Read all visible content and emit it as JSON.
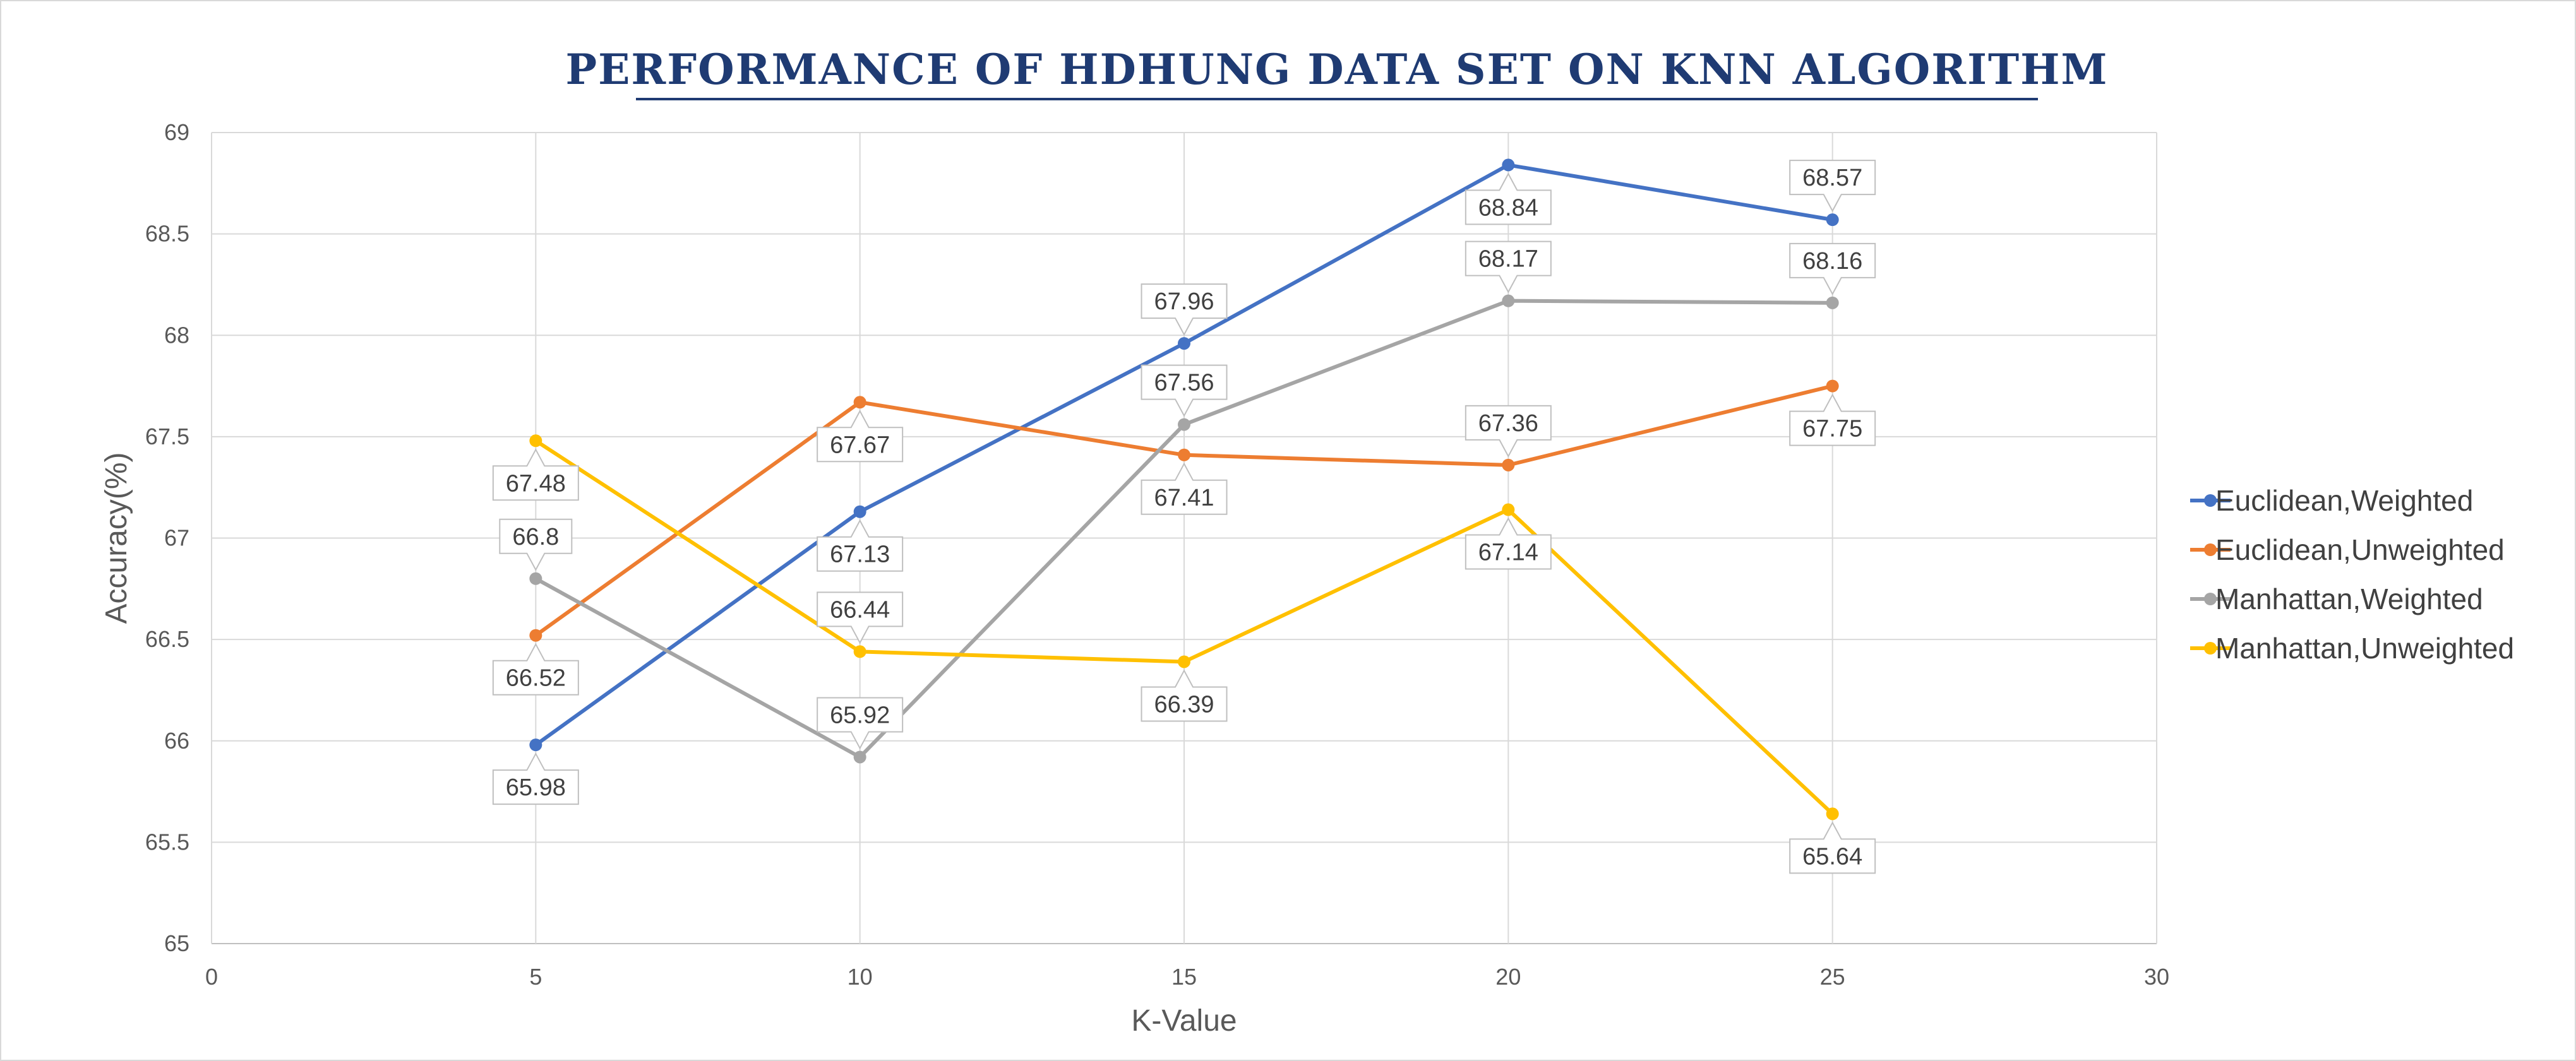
{
  "chart_data": {
    "type": "line",
    "title": "PERFORMANCE OF HDHUNG DATA SET ON KNN ALGORITHM",
    "xlabel": "K-Value",
    "ylabel": "Accuracy(%)",
    "xlim": [
      0,
      30
    ],
    "ylim": [
      65,
      69
    ],
    "x_ticks": [
      0,
      5,
      10,
      15,
      20,
      25,
      30
    ],
    "y_ticks": [
      65,
      65.5,
      66,
      66.5,
      67,
      67.5,
      68,
      68.5,
      69
    ],
    "grid": true,
    "legend_position": "right",
    "x": [
      5,
      10,
      15,
      20,
      25
    ],
    "series": [
      {
        "name": "Euclidean,Weighted",
        "color": "#4472C4",
        "values": [
          65.98,
          67.13,
          67.96,
          68.84,
          68.57
        ],
        "labels": [
          "65.98",
          "67.13",
          "67.96",
          "68.84",
          "68.57"
        ],
        "label_pos": [
          "below",
          "below",
          "above",
          "below",
          "above"
        ]
      },
      {
        "name": "Euclidean,Unweighted",
        "color": "#ED7D31",
        "values": [
          66.52,
          67.67,
          67.41,
          67.36,
          67.75
        ],
        "labels": [
          "66.52",
          "67.67",
          "67.41",
          "67.36",
          "67.75"
        ],
        "label_pos": [
          "below",
          "below",
          "below",
          "above",
          "below"
        ]
      },
      {
        "name": "Manhattan,Weighted",
        "color": "#A5A5A5",
        "values": [
          66.8,
          65.92,
          67.56,
          68.17,
          68.16
        ],
        "labels": [
          "66.8",
          "65.92",
          "67.56",
          "68.17",
          "68.16"
        ],
        "label_pos": [
          "above",
          "above",
          "above",
          "above",
          "above"
        ]
      },
      {
        "name": "Manhattan,Unweighted",
        "color": "#FFC000",
        "values": [
          67.48,
          66.44,
          66.39,
          67.14,
          65.64
        ],
        "labels": [
          "67.48",
          "66.44",
          "66.39",
          "67.14",
          "65.64"
        ],
        "label_pos": [
          "below",
          "above",
          "below",
          "below",
          "below"
        ]
      }
    ]
  }
}
